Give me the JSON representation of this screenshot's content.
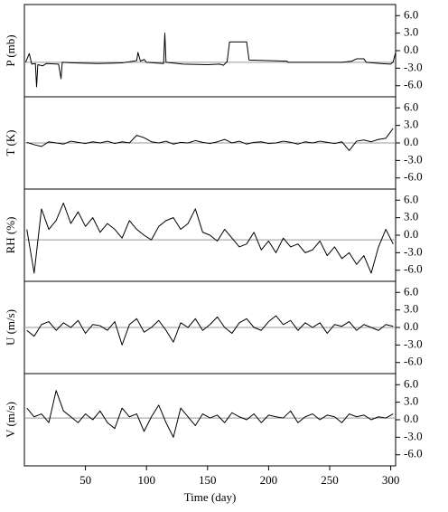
{
  "chart_data": [
    {
      "type": "line",
      "ylabel": "P (mb)",
      "color": "#000000",
      "reference": -2.0,
      "reference_color": "#999999",
      "xlim": [
        0,
        304
      ],
      "ylim": [
        -7.9,
        7.9
      ],
      "yticks": [
        {
          "value": 6,
          "label": "6.0"
        },
        {
          "value": 3,
          "label": "3.0"
        },
        {
          "value": 0,
          "label": "0.0"
        },
        {
          "value": -3,
          "label": "-3.0"
        },
        {
          "value": -6,
          "label": "-6.0"
        }
      ],
      "x": [
        1,
        4,
        6,
        9,
        10,
        11,
        15,
        18,
        28,
        30,
        31,
        40,
        60,
        80,
        92,
        93,
        95,
        98,
        100,
        114,
        115,
        116,
        130,
        150,
        160,
        163,
        166,
        168,
        182,
        184,
        200,
        215,
        216,
        260,
        268,
        272,
        278,
        280,
        292,
        300,
        302,
        304
      ],
      "values": [
        -2,
        -0.5,
        -2.3,
        -2.2,
        -6.2,
        -2.4,
        -2.6,
        -2.2,
        -2.3,
        -4.8,
        -2,
        -2.1,
        -2.2,
        -2.1,
        -1.7,
        -0.3,
        -1.8,
        -1.5,
        -2,
        -2.2,
        3.0,
        -2.0,
        -2.3,
        -2.4,
        -2.3,
        -2.5,
        -1.9,
        1.5,
        1.5,
        -1.6,
        -1.7,
        -1.8,
        -2.0,
        -2.0,
        -1.8,
        -1.4,
        -1.4,
        -2.0,
        -2.2,
        -2.3,
        -1.9,
        -0.3
      ]
    },
    {
      "type": "line",
      "ylabel": "T (K)",
      "color": "#000000",
      "reference": 0,
      "reference_color": "#999999",
      "xlim": [
        0,
        304
      ],
      "ylim": [
        -7.9,
        7.9
      ],
      "yticks": [
        {
          "value": 6,
          "label": "6.0"
        },
        {
          "value": 3,
          "label": "3.0"
        },
        {
          "value": 0,
          "label": "0.0"
        },
        {
          "value": -3,
          "label": "-3.0"
        },
        {
          "value": -6,
          "label": "-6.0"
        }
      ],
      "x": [
        2,
        8,
        14,
        20,
        26,
        32,
        38,
        44,
        50,
        56,
        62,
        68,
        74,
        80,
        86,
        92,
        98,
        104,
        110,
        116,
        122,
        128,
        134,
        140,
        146,
        152,
        158,
        164,
        170,
        176,
        182,
        188,
        194,
        200,
        206,
        212,
        218,
        224,
        230,
        236,
        242,
        248,
        254,
        260,
        266,
        272,
        278,
        284,
        290,
        296,
        302
      ],
      "values": [
        0.1,
        -0.3,
        -0.6,
        0.2,
        0.0,
        -0.2,
        0.3,
        0.1,
        -0.1,
        0.2,
        0.0,
        0.3,
        -0.1,
        0.2,
        0.0,
        1.3,
        0.9,
        0.2,
        0.0,
        0.3,
        -0.2,
        0.1,
        0.0,
        0.4,
        0.1,
        -0.1,
        0.2,
        0.6,
        0.0,
        0.3,
        -0.2,
        0.1,
        0.2,
        -0.1,
        0.0,
        0.3,
        0.1,
        -0.2,
        0.2,
        0.0,
        0.3,
        0.1,
        -0.1,
        0.2,
        -1.3,
        0.3,
        0.5,
        0.2,
        0.6,
        0.8,
        2.5
      ]
    },
    {
      "type": "line",
      "ylabel": "RH (%)",
      "color": "#000000",
      "reference": -0.8,
      "reference_color": "#999999",
      "xlim": [
        0,
        304
      ],
      "ylim": [
        -7.9,
        7.9
      ],
      "yticks": [
        {
          "value": 6,
          "label": "6.0"
        },
        {
          "value": 3,
          "label": "3.0"
        },
        {
          "value": 0,
          "label": "0.0"
        },
        {
          "value": -3,
          "label": "-3.0"
        },
        {
          "value": -6,
          "label": "-6.0"
        }
      ],
      "x": [
        2,
        8,
        14,
        20,
        26,
        32,
        38,
        44,
        50,
        56,
        62,
        68,
        74,
        80,
        86,
        92,
        98,
        104,
        110,
        116,
        122,
        128,
        134,
        140,
        146,
        152,
        158,
        164,
        170,
        176,
        182,
        188,
        194,
        200,
        206,
        212,
        218,
        224,
        230,
        236,
        242,
        248,
        254,
        260,
        266,
        272,
        278,
        284,
        290,
        296,
        302
      ],
      "values": [
        1.0,
        -6.5,
        4.5,
        1.0,
        2.5,
        5.5,
        2.0,
        4.0,
        1.5,
        3.0,
        0.5,
        2.0,
        1.0,
        -0.5,
        2.5,
        1.0,
        0.0,
        -0.8,
        1.5,
        2.5,
        3.0,
        1.0,
        2.0,
        4.5,
        0.5,
        0.0,
        -1.0,
        1.0,
        -0.5,
        -2.0,
        -1.5,
        0.5,
        -2.5,
        -1.0,
        -3.0,
        -0.5,
        -2.0,
        -1.5,
        -3.0,
        -2.5,
        -1.0,
        -3.5,
        -2.0,
        -4.0,
        -3.0,
        -5.0,
        -3.5,
        -6.5,
        -2.0,
        1.0,
        -1.5
      ]
    },
    {
      "type": "line",
      "ylabel": "U (m/s)",
      "color": "#000000",
      "reference": 0,
      "reference_color": "#999999",
      "xlim": [
        0,
        304
      ],
      "ylim": [
        -7.9,
        7.9
      ],
      "yticks": [
        {
          "value": 6,
          "label": "6.0"
        },
        {
          "value": 3,
          "label": "3.0"
        },
        {
          "value": 0,
          "label": "0.0"
        },
        {
          "value": -3,
          "label": "-3.0"
        },
        {
          "value": -6,
          "label": "-6.0"
        }
      ],
      "x": [
        2,
        8,
        14,
        20,
        26,
        32,
        38,
        44,
        50,
        56,
        62,
        68,
        74,
        80,
        86,
        92,
        98,
        104,
        110,
        116,
        122,
        128,
        134,
        140,
        146,
        152,
        158,
        164,
        170,
        176,
        182,
        188,
        194,
        200,
        206,
        212,
        218,
        224,
        230,
        236,
        242,
        248,
        254,
        260,
        266,
        272,
        278,
        284,
        290,
        296,
        302
      ],
      "values": [
        -0.5,
        -1.5,
        0.5,
        1.0,
        -0.5,
        0.8,
        0.0,
        1.2,
        -1.0,
        0.5,
        0.3,
        -0.5,
        1.0,
        -3.0,
        0.5,
        1.5,
        -0.8,
        0.0,
        1.2,
        -0.5,
        -2.5,
        0.8,
        0.0,
        1.5,
        -0.5,
        0.5,
        1.8,
        0.0,
        -1.0,
        0.8,
        1.5,
        0.0,
        -0.5,
        1.0,
        2.0,
        0.5,
        1.2,
        -0.5,
        0.8,
        0.0,
        0.8,
        -1.0,
        0.5,
        0.2,
        1.0,
        -0.5,
        0.5,
        0.0,
        -0.5,
        0.5,
        0.2
      ]
    },
    {
      "type": "line",
      "ylabel": "V (m/s)",
      "xlabel": "Time (day)",
      "color": "#000000",
      "reference": 0.3,
      "reference_color": "#999999",
      "xlim": [
        0,
        304
      ],
      "ylim": [
        -7.9,
        7.9
      ],
      "xticks": [
        50,
        100,
        150,
        200,
        250,
        300
      ],
      "yticks": [
        {
          "value": 6,
          "label": "6.0"
        },
        {
          "value": 3,
          "label": "3.0"
        },
        {
          "value": 0,
          "label": "0.0"
        },
        {
          "value": -3,
          "label": "-3.0"
        },
        {
          "value": -6,
          "label": "-6.0"
        }
      ],
      "x": [
        2,
        8,
        14,
        20,
        26,
        32,
        38,
        44,
        50,
        56,
        62,
        68,
        74,
        80,
        86,
        92,
        98,
        104,
        110,
        116,
        122,
        128,
        134,
        140,
        146,
        152,
        158,
        164,
        170,
        176,
        182,
        188,
        194,
        200,
        206,
        212,
        218,
        224,
        230,
        236,
        242,
        248,
        254,
        260,
        266,
        272,
        278,
        284,
        290,
        296,
        302
      ],
      "values": [
        2.0,
        0.5,
        1.0,
        -0.5,
        5.0,
        1.5,
        0.5,
        -0.5,
        1.0,
        0.0,
        1.5,
        -0.5,
        -1.5,
        2.0,
        0.5,
        1.0,
        -2.0,
        0.5,
        2.5,
        -0.5,
        -3.0,
        2.0,
        0.5,
        -1.0,
        1.0,
        0.3,
        0.8,
        -0.5,
        1.2,
        0.5,
        0.0,
        1.0,
        -0.5,
        0.8,
        0.5,
        0.3,
        1.5,
        -0.5,
        0.5,
        1.0,
        0.0,
        0.8,
        0.5,
        -0.5,
        1.0,
        0.5,
        0.8,
        0.0,
        0.5,
        0.3,
        1.0
      ]
    }
  ]
}
